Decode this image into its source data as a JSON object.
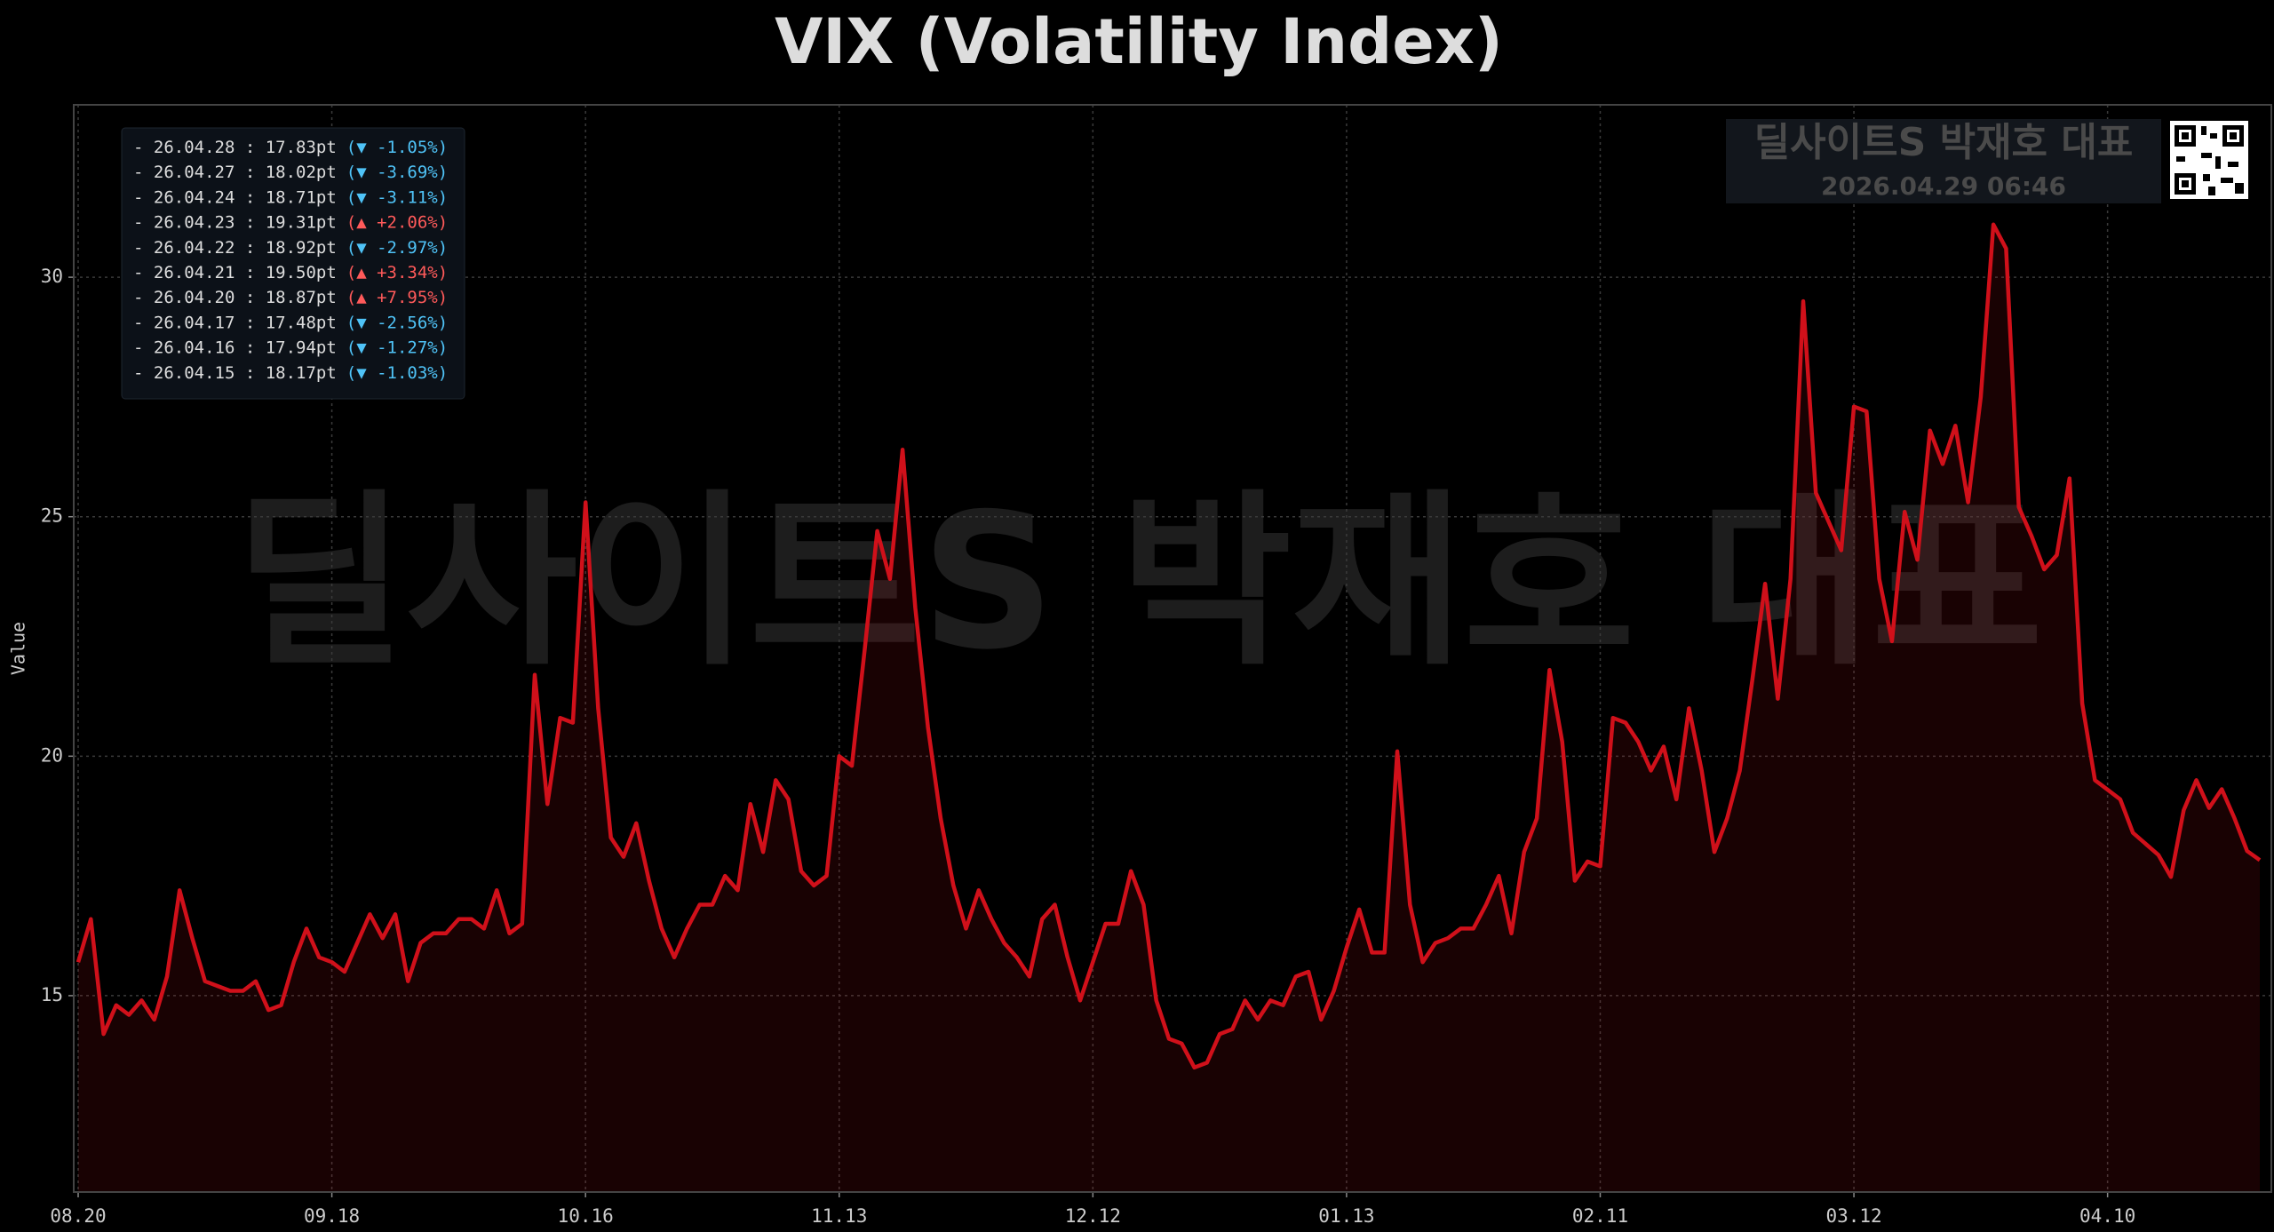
{
  "chart_data": {
    "type": "line",
    "title": "VIX (Volatility Index)",
    "y_label": "Value",
    "watermark": "딜사이트S 박재호 대표",
    "stamp": {
      "title": "딜사이트S 박재호 대표",
      "time": "2026.04.29 06:46"
    },
    "categories": [
      "08.20",
      null,
      null,
      null,
      null,
      null,
      null,
      null,
      null,
      null,
      null,
      null,
      null,
      null,
      null,
      null,
      null,
      null,
      null,
      null,
      "09.18",
      null,
      null,
      null,
      null,
      null,
      null,
      null,
      null,
      null,
      null,
      null,
      null,
      null,
      null,
      null,
      null,
      null,
      null,
      null,
      "10.16",
      null,
      null,
      null,
      null,
      null,
      null,
      null,
      null,
      null,
      null,
      null,
      null,
      null,
      null,
      null,
      null,
      null,
      null,
      null,
      "11.13",
      null,
      null,
      null,
      null,
      null,
      null,
      null,
      null,
      null,
      null,
      null,
      null,
      null,
      null,
      null,
      null,
      null,
      null,
      null,
      "12.12",
      null,
      null,
      null,
      null,
      null,
      null,
      null,
      null,
      null,
      null,
      null,
      null,
      null,
      null,
      null,
      null,
      null,
      null,
      null,
      "01.13",
      null,
      null,
      null,
      null,
      null,
      null,
      null,
      null,
      null,
      null,
      null,
      null,
      null,
      null,
      null,
      null,
      null,
      null,
      null,
      "02.11",
      null,
      null,
      null,
      null,
      null,
      null,
      null,
      null,
      null,
      null,
      null,
      null,
      null,
      null,
      null,
      null,
      null,
      null,
      null,
      "03.12",
      null,
      null,
      null,
      null,
      null,
      null,
      null,
      null,
      null,
      null,
      null,
      null,
      null,
      null,
      null,
      null,
      null,
      null,
      null,
      "04.10",
      null,
      null,
      null,
      null,
      null,
      null,
      null,
      null,
      null,
      null,
      null,
      null
    ],
    "values": [
      15.7,
      16.6,
      14.2,
      14.8,
      14.6,
      14.9,
      14.5,
      15.4,
      17.2,
      16.2,
      15.3,
      15.2,
      15.1,
      15.1,
      15.3,
      14.7,
      14.8,
      15.7,
      16.4,
      15.8,
      15.7,
      15.5,
      16.1,
      16.7,
      16.2,
      16.7,
      15.3,
      16.1,
      16.3,
      16.3,
      16.6,
      16.6,
      16.4,
      17.2,
      16.3,
      16.5,
      21.7,
      19.0,
      20.8,
      20.7,
      25.3,
      21.0,
      18.3,
      17.9,
      18.6,
      17.4,
      16.4,
      15.8,
      16.4,
      16.9,
      16.9,
      17.5,
      17.2,
      19.0,
      18.0,
      19.5,
      19.1,
      17.6,
      17.3,
      17.5,
      20.0,
      19.8,
      22.2,
      24.7,
      23.7,
      26.4,
      23.1,
      20.6,
      18.7,
      17.3,
      16.4,
      17.2,
      16.6,
      16.1,
      15.8,
      15.4,
      16.6,
      16.9,
      15.8,
      14.9,
      15.7,
      16.5,
      16.5,
      17.6,
      16.9,
      14.9,
      14.1,
      14.0,
      13.5,
      13.6,
      14.2,
      14.3,
      14.9,
      14.5,
      14.9,
      14.8,
      15.4,
      15.5,
      14.5,
      15.1,
      16.0,
      16.8,
      15.9,
      15.9,
      20.1,
      16.9,
      15.7,
      16.1,
      16.2,
      16.4,
      16.4,
      16.9,
      17.5,
      16.3,
      18.0,
      18.7,
      21.8,
      20.3,
      17.4,
      17.8,
      17.7,
      20.8,
      20.7,
      20.3,
      19.7,
      20.2,
      19.1,
      21.0,
      19.7,
      18.0,
      18.7,
      19.7,
      21.6,
      23.6,
      21.2,
      23.7,
      29.5,
      25.5,
      24.9,
      24.3,
      27.3,
      27.2,
      23.7,
      22.4,
      25.1,
      24.1,
      26.8,
      26.1,
      26.9,
      25.3,
      27.5,
      31.1,
      30.6,
      25.2,
      24.6,
      23.9,
      24.2,
      25.8,
      21.1,
      19.5,
      19.3,
      19.1,
      18.4,
      18.17,
      17.94,
      17.48,
      18.87,
      19.5,
      18.92,
      19.31,
      18.71,
      18.02,
      17.83
    ],
    "color": "#d0101a",
    "ylim": [
      10.9,
      33.6
    ],
    "yticks": [
      15,
      20,
      25,
      30
    ],
    "grid": true,
    "recent": [
      {
        "text": "- 26.04.28 : 17.83pt",
        "change": "(▼ -1.05%)",
        "color": "#4fc3f7"
      },
      {
        "text": "- 26.04.27 : 18.02pt",
        "change": "(▼ -3.69%)",
        "color": "#4fc3f7"
      },
      {
        "text": "- 26.04.24 : 18.71pt",
        "change": "(▼ -3.11%)",
        "color": "#4fc3f7"
      },
      {
        "text": "- 26.04.23 : 19.31pt",
        "change": "(▲ +2.06%)",
        "color": "#ff5a5a"
      },
      {
        "text": "- 26.04.22 : 18.92pt",
        "change": "(▼ -2.97%)",
        "color": "#4fc3f7"
      },
      {
        "text": "- 26.04.21 : 19.50pt",
        "change": "(▲ +3.34%)",
        "color": "#ff5a5a"
      },
      {
        "text": "- 26.04.20 : 18.87pt",
        "change": "(▲ +7.95%)",
        "color": "#ff5a5a"
      },
      {
        "text": "- 26.04.17 : 17.48pt",
        "change": "(▼ -2.56%)",
        "color": "#4fc3f7"
      },
      {
        "text": "- 26.04.16 : 17.94pt",
        "change": "(▼ -1.27%)",
        "color": "#4fc3f7"
      },
      {
        "text": "- 26.04.15 : 18.17pt",
        "change": "(▼ -1.03%)",
        "color": "#4fc3f7"
      }
    ]
  }
}
